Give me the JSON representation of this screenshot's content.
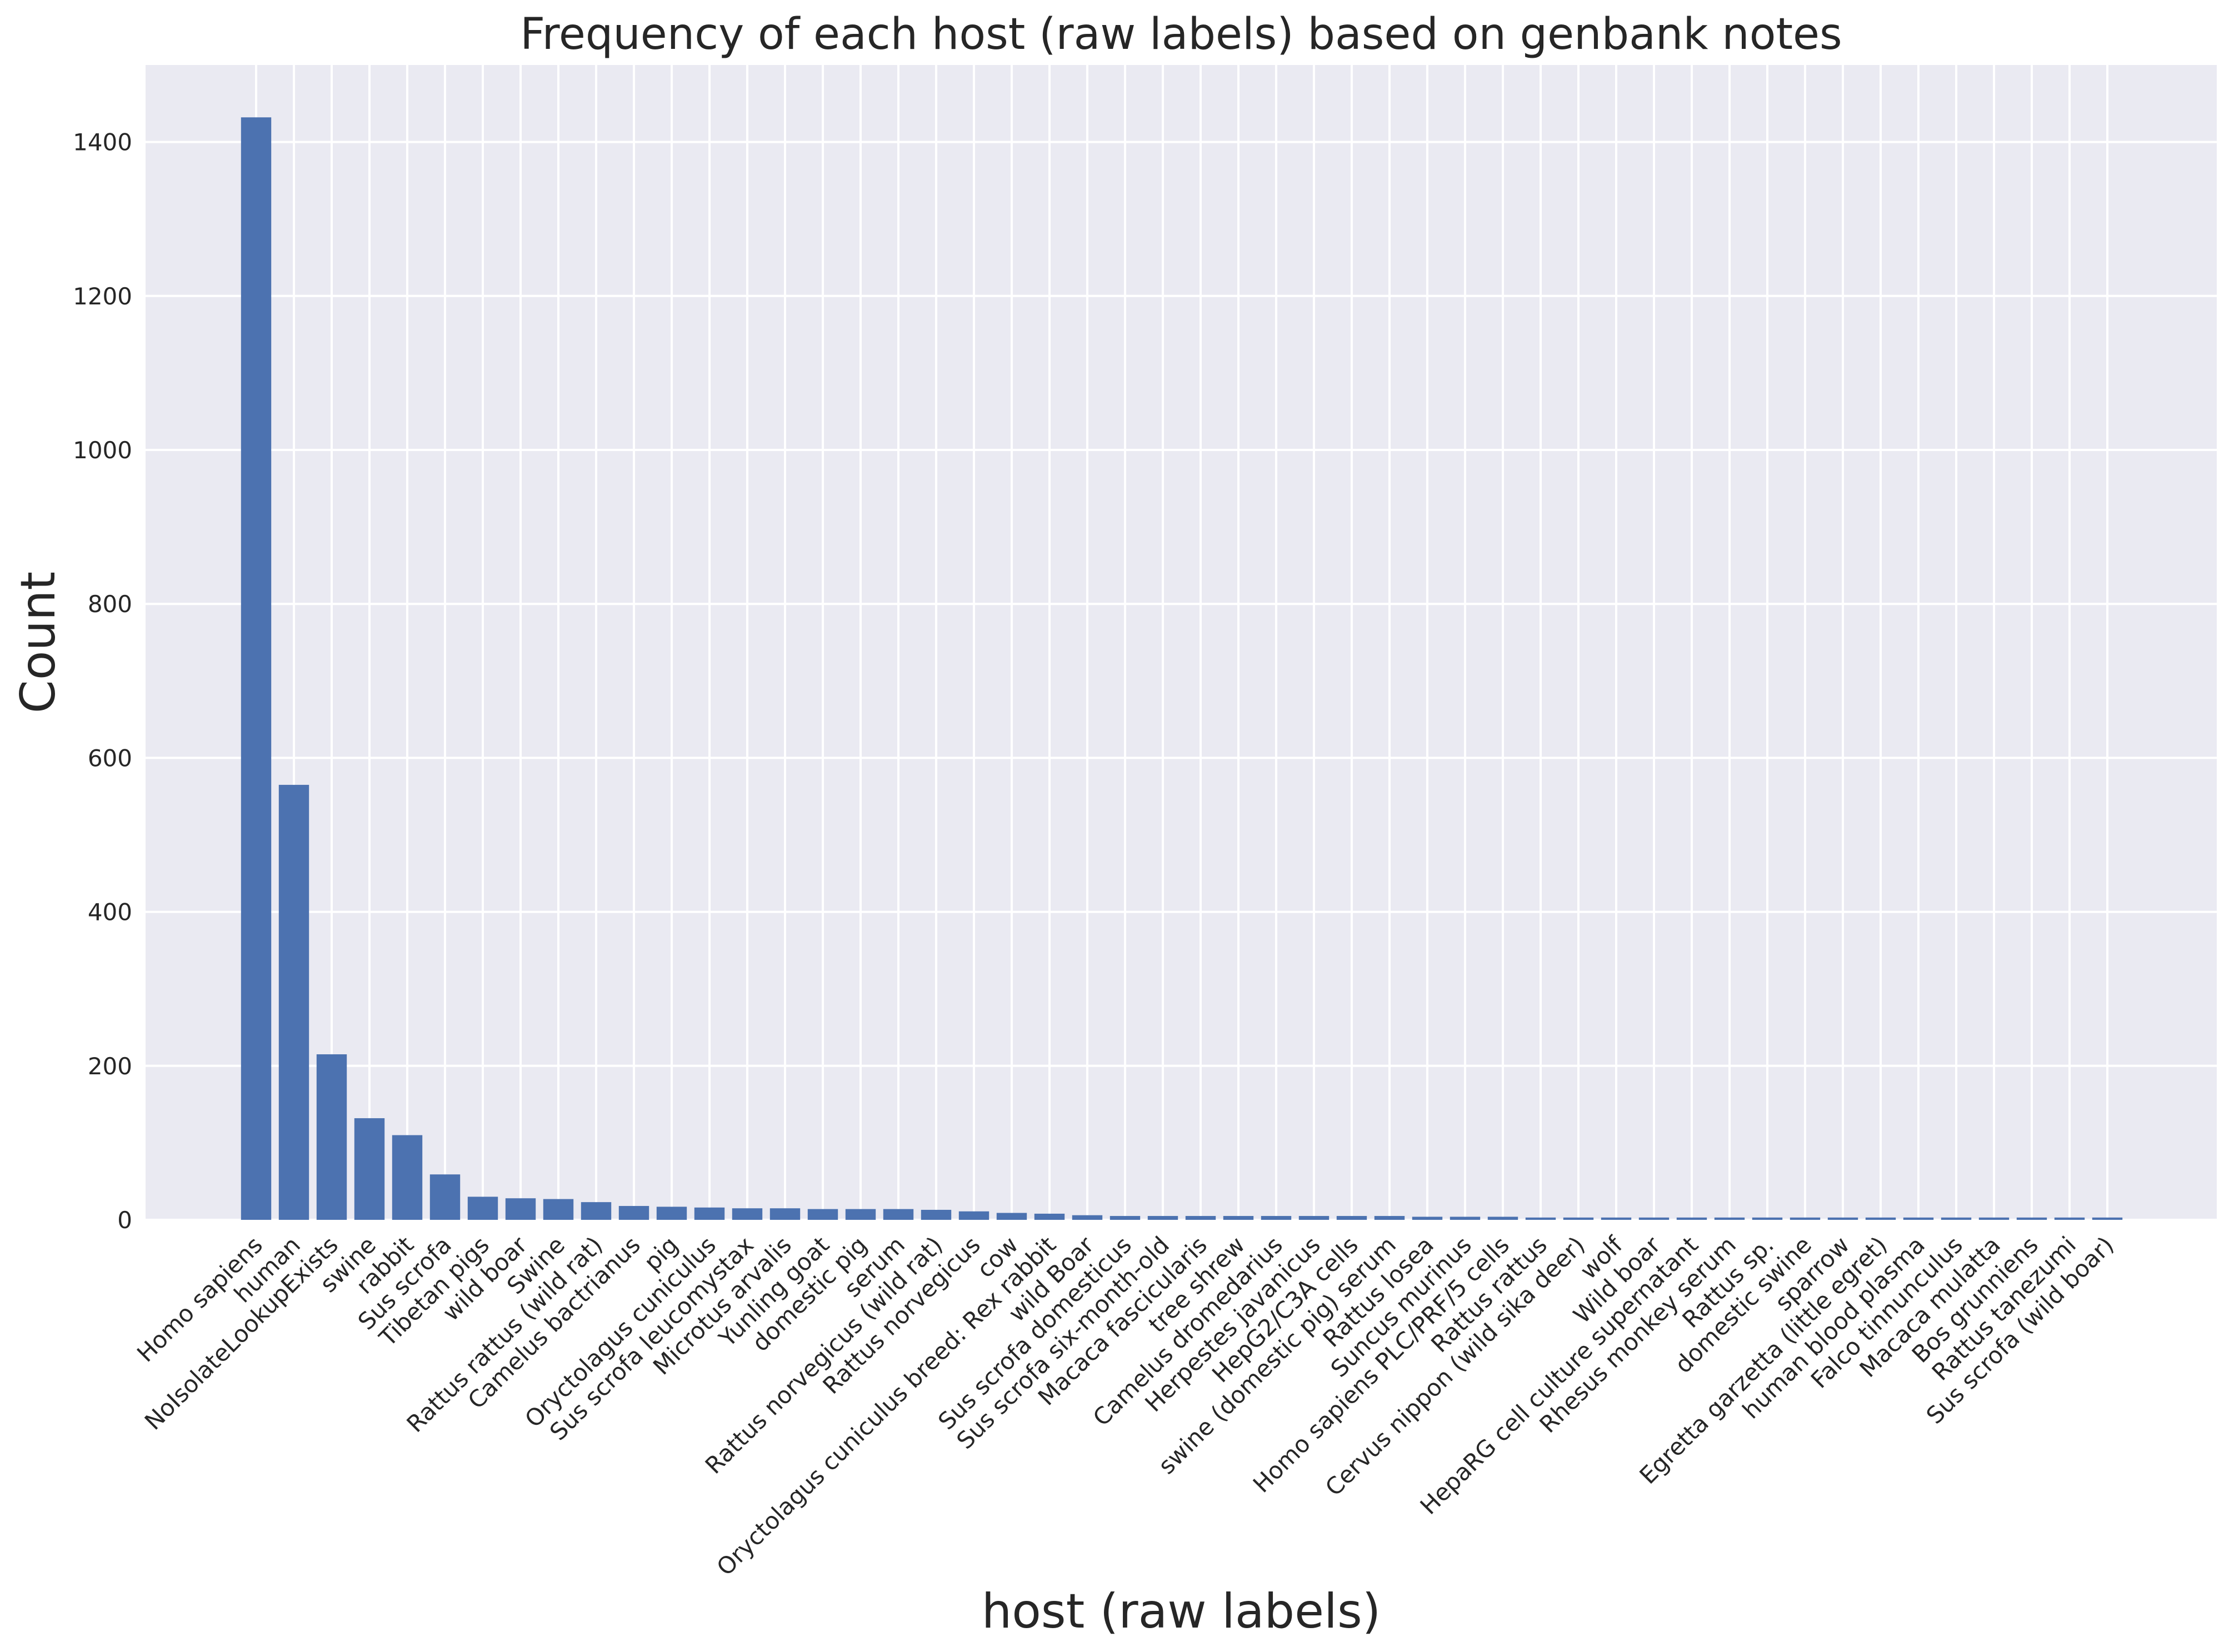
{
  "chart_data": {
    "type": "bar",
    "title": "Frequency of each host (raw labels) based on genbank notes",
    "xlabel": "host (raw labels)",
    "ylabel": "Count",
    "ylim": [
      0,
      1500
    ],
    "yticks": [
      0,
      200,
      400,
      600,
      800,
      1000,
      1200,
      1400
    ],
    "grid": true,
    "color": "#4c72b0",
    "background": "#eaeaf2",
    "categories": [
      "Homo sapiens",
      "human",
      "NoIsolateLookupExists",
      "swine",
      "rabbit",
      "Sus scrofa",
      "Tibetan pigs",
      "wild boar",
      "Swine",
      "Rattus rattus (wild rat)",
      "Camelus bactrianus",
      "pig",
      "Oryctolagus cuniculus",
      "Sus scrofa leucomystax",
      "Microtus arvalis",
      "Yunling goat",
      "domestic pig",
      "serum",
      "Rattus norvegicus (wild rat)",
      "Rattus norvegicus",
      "cow",
      "Oryctolagus cuniculus breed: Rex rabbit",
      "wild Boar",
      "Sus scrofa domesticus",
      "Sus scrofa six-month-old",
      "Macaca fascicularis",
      "tree shrew",
      "Camelus dromedarius",
      "Herpestes javanicus",
      "HepG2/C3A cells",
      "swine (domestic pig) serum",
      "Rattus losea",
      "Suncus murinus",
      "Homo sapiens PLC/PRF/5 cells",
      "Rattus rattus",
      "Cervus nippon (wild sika deer)",
      "wolf",
      "Wild boar",
      "HepaRG cell culture supernatant",
      "Rhesus monkey serum",
      "Rattus sp.",
      "domestic swine",
      "sparrow",
      "Egretta garzetta (little egret)",
      "human blood plasma",
      "Falco tinnunculus",
      "Macaca mulatta",
      "Bos grunniens",
      "Rattus tanezumi",
      "Sus scrofa (wild boar)"
    ],
    "values": [
      1432,
      565,
      215,
      132,
      110,
      59,
      30,
      28,
      27,
      23,
      18,
      17,
      16,
      15,
      15,
      14,
      14,
      14,
      13,
      11,
      9,
      8,
      6,
      5,
      5,
      5,
      5,
      5,
      5,
      5,
      5,
      4,
      4,
      4,
      3,
      3,
      3,
      3,
      3,
      3,
      3,
      3,
      3,
      3,
      3,
      3,
      3,
      3,
      3,
      3
    ]
  }
}
